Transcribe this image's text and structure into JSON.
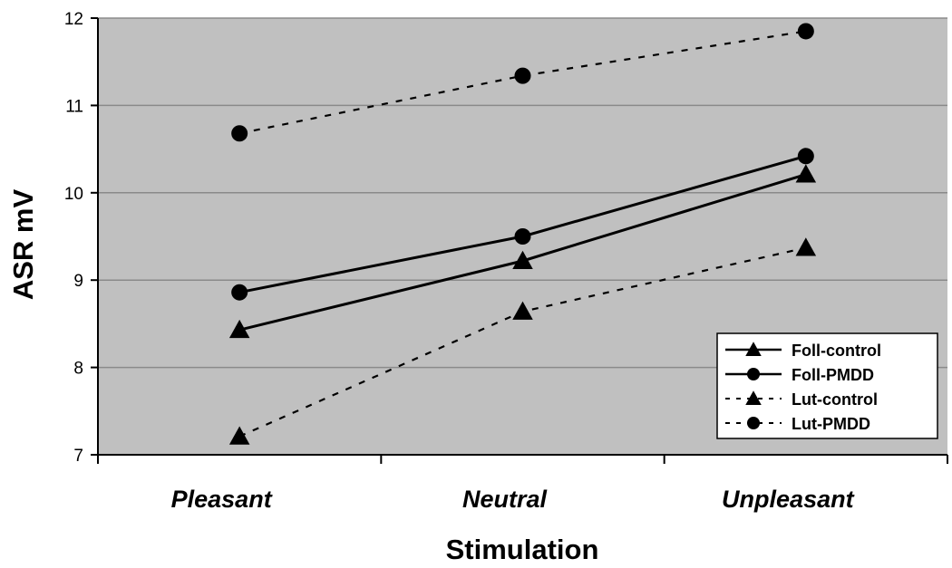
{
  "chart_data": {
    "type": "line",
    "categories": [
      "Pleasant",
      "Neutral",
      "Unpleasant"
    ],
    "xlabel": "Stimulation",
    "ylabel": "ASR mV",
    "ylim": [
      7,
      12
    ],
    "yticks": [
      7,
      8,
      9,
      10,
      11,
      12
    ],
    "grid": true,
    "legend_position": "bottom-right",
    "plot_background": "#c0c0c0",
    "series": [
      {
        "name": "Foll-control",
        "values": [
          8.43,
          9.22,
          10.21
        ],
        "marker": "triangle",
        "line": "solid",
        "color": "#000000"
      },
      {
        "name": "Foll-PMDD",
        "values": [
          8.86,
          9.5,
          10.42
        ],
        "marker": "circle",
        "line": "solid",
        "color": "#000000"
      },
      {
        "name": "Lut-control",
        "values": [
          7.21,
          8.64,
          9.37
        ],
        "marker": "triangle",
        "line": "dashed",
        "color": "#000000"
      },
      {
        "name": "Lut-PMDD",
        "values": [
          10.68,
          11.34,
          11.85
        ],
        "marker": "circle",
        "line": "dashed",
        "color": "#000000"
      }
    ]
  }
}
